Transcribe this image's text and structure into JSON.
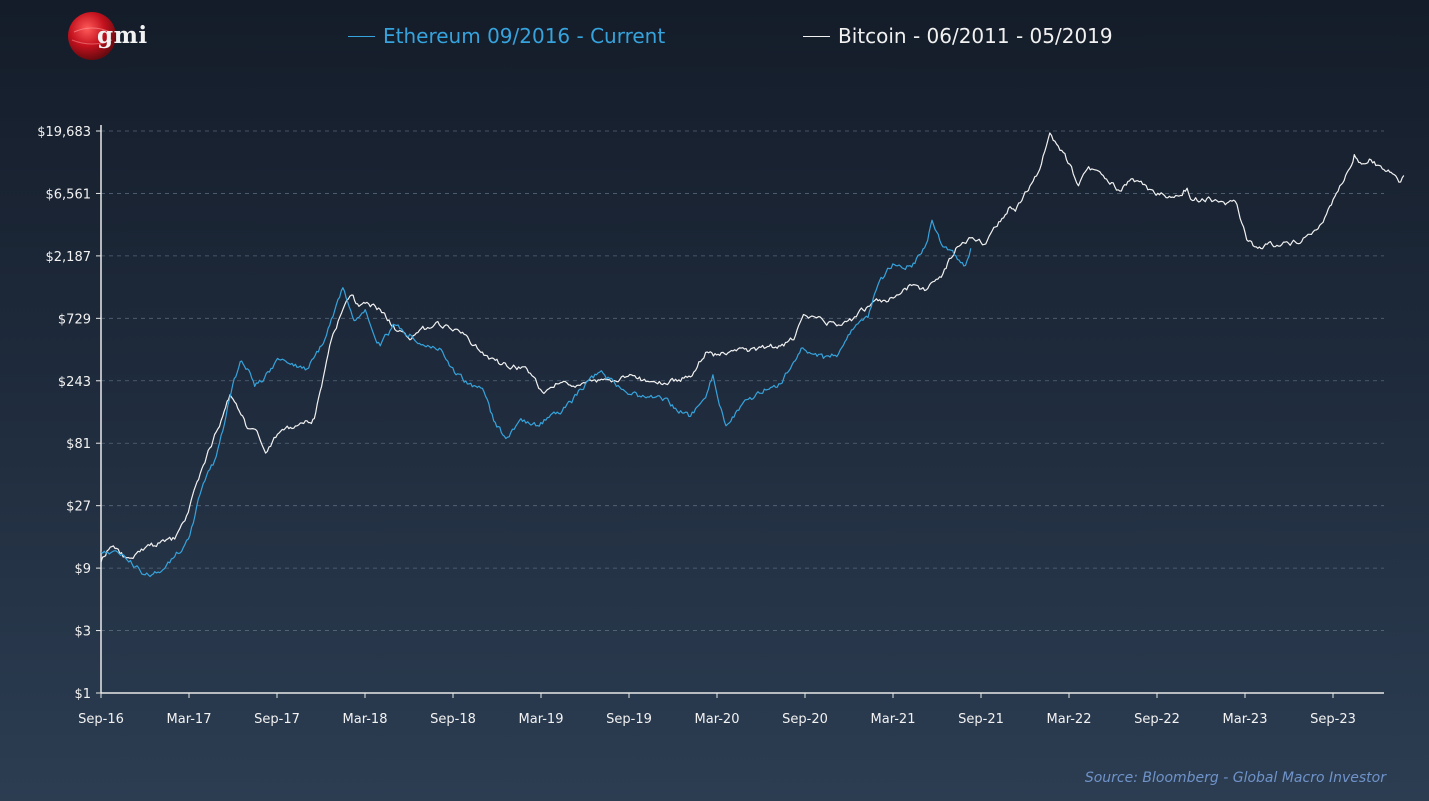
{
  "logo": {
    "text": "gmi",
    "icon": "red-globe-logo"
  },
  "legend": [
    {
      "label": "Ethereum 09/2016 - Current",
      "color": "#36a3dc"
    },
    {
      "label": "Bitcoin - 06/2011 - 05/2019",
      "color": "#f1f1f1"
    }
  ],
  "source": "Source: Bloomberg - Global Macro Investor",
  "chart_data": {
    "type": "line",
    "title": "",
    "xlabel": "",
    "ylabel": "",
    "y_scale": "log3",
    "y_ticks": [
      1,
      3,
      9,
      27,
      81,
      243,
      729,
      2187,
      6561,
      19683
    ],
    "y_tick_labels": [
      "$1",
      "$3",
      "$9",
      "$27",
      "$81",
      "$243",
      "$729",
      "$2,187",
      "$6,561",
      "$19,683"
    ],
    "x_tick_labels": [
      "Sep-16",
      "Mar-17",
      "Sep-17",
      "Mar-18",
      "Sep-18",
      "Mar-19",
      "Sep-19",
      "Mar-20",
      "Sep-20",
      "Mar-21",
      "Sep-21",
      "Mar-22",
      "Sep-22",
      "Mar-23",
      "Sep-23"
    ],
    "grid": "horizontal dashed",
    "legend_position": "top",
    "series": [
      {
        "name": "Ethereum 09/2016 - Current",
        "color": "#36a3dc",
        "points": [
          [
            "2016-09-01",
            12
          ],
          [
            "2016-10-15",
            11.5
          ],
          [
            "2016-12-01",
            8
          ],
          [
            "2016-12-31",
            8.3
          ],
          [
            "2017-01-31",
            11
          ],
          [
            "2017-02-28",
            15
          ],
          [
            "2017-03-31",
            40
          ],
          [
            "2017-04-20",
            55
          ],
          [
            "2017-05-10",
            100
          ],
          [
            "2017-05-31",
            230
          ],
          [
            "2017-06-15",
            340
          ],
          [
            "2017-06-30",
            300
          ],
          [
            "2017-07-15",
            220
          ],
          [
            "2017-08-01",
            240
          ],
          [
            "2017-08-31",
            360
          ],
          [
            "2017-09-30",
            330
          ],
          [
            "2017-10-31",
            300
          ],
          [
            "2017-11-30",
            450
          ],
          [
            "2017-12-20",
            720
          ],
          [
            "2018-01-13",
            1250
          ],
          [
            "2018-02-05",
            700
          ],
          [
            "2018-02-28",
            850
          ],
          [
            "2018-03-31",
            450
          ],
          [
            "2018-04-30",
            650
          ],
          [
            "2018-05-31",
            550
          ],
          [
            "2018-06-30",
            450
          ],
          [
            "2018-07-31",
            430
          ],
          [
            "2018-08-31",
            280
          ],
          [
            "2018-09-30",
            230
          ],
          [
            "2018-10-31",
            200
          ],
          [
            "2018-11-20",
            120
          ],
          [
            "2018-12-15",
            88
          ],
          [
            "2019-01-15",
            125
          ],
          [
            "2019-02-15",
            110
          ],
          [
            "2019-03-31",
            140
          ],
          [
            "2019-04-30",
            165
          ],
          [
            "2019-05-31",
            240
          ],
          [
            "2019-06-30",
            290
          ],
          [
            "2019-07-31",
            220
          ],
          [
            "2019-08-31",
            190
          ],
          [
            "2019-09-30",
            180
          ],
          [
            "2019-10-31",
            180
          ],
          [
            "2019-11-30",
            150
          ],
          [
            "2019-12-31",
            130
          ],
          [
            "2020-01-31",
            180
          ],
          [
            "2020-02-15",
            270
          ],
          [
            "2020-03-13",
            110
          ],
          [
            "2020-04-15",
            160
          ],
          [
            "2020-05-31",
            210
          ],
          [
            "2020-06-30",
            230
          ],
          [
            "2020-07-31",
            340
          ],
          [
            "2020-08-15",
            430
          ],
          [
            "2020-09-30",
            360
          ],
          [
            "2020-10-31",
            390
          ],
          [
            "2020-11-30",
            600
          ],
          [
            "2020-12-31",
            740
          ],
          [
            "2021-01-20",
            1300
          ],
          [
            "2021-02-20",
            1900
          ],
          [
            "2021-03-31",
            1800
          ],
          [
            "2021-04-30",
            2700
          ],
          [
            "2021-05-12",
            4100
          ],
          [
            "2021-05-31",
            2700
          ],
          [
            "2021-06-30",
            2200
          ],
          [
            "2021-07-20",
            1850
          ],
          [
            "2021-07-31",
            2500
          ]
        ]
      },
      {
        "name": "Bitcoin - 06/2011 - 05/2019",
        "color": "#f1f1f1",
        "points": [
          [
            "2016-09-01",
            10
          ],
          [
            "2016-09-20",
            13
          ],
          [
            "2016-10-20",
            11
          ],
          [
            "2016-11-20",
            12
          ],
          [
            "2016-12-31",
            14
          ],
          [
            "2017-01-31",
            15
          ],
          [
            "2017-02-28",
            24
          ],
          [
            "2017-03-15",
            38
          ],
          [
            "2017-03-31",
            55
          ],
          [
            "2017-04-20",
            85
          ],
          [
            "2017-05-10",
            130
          ],
          [
            "2017-05-25",
            190
          ],
          [
            "2017-06-10",
            150
          ],
          [
            "2017-06-30",
            105
          ],
          [
            "2017-07-20",
            100
          ],
          [
            "2017-08-10",
            70
          ],
          [
            "2017-08-31",
            95
          ],
          [
            "2017-09-30",
            105
          ],
          [
            "2017-10-31",
            120
          ],
          [
            "2017-11-15",
            125
          ],
          [
            "2017-11-30",
            220
          ],
          [
            "2017-12-20",
            500
          ],
          [
            "2018-01-10",
            800
          ],
          [
            "2018-01-31",
            1100
          ],
          [
            "2018-02-15",
            900
          ],
          [
            "2018-02-28",
            950
          ],
          [
            "2018-03-31",
            850
          ],
          [
            "2018-04-15",
            700
          ],
          [
            "2018-04-30",
            600
          ],
          [
            "2018-05-31",
            500
          ],
          [
            "2018-06-30",
            600
          ],
          [
            "2018-07-31",
            650
          ],
          [
            "2018-08-31",
            600
          ],
          [
            "2018-09-30",
            500
          ],
          [
            "2018-10-31",
            380
          ],
          [
            "2018-11-30",
            330
          ],
          [
            "2018-12-31",
            320
          ],
          [
            "2019-01-31",
            280
          ],
          [
            "2019-02-28",
            200
          ],
          [
            "2019-03-31",
            230
          ],
          [
            "2019-04-30",
            220
          ],
          [
            "2019-05-31",
            240
          ],
          [
            "2019-06-30",
            250
          ],
          [
            "2019-07-31",
            240
          ],
          [
            "2019-08-31",
            270
          ],
          [
            "2019-09-30",
            240
          ],
          [
            "2019-10-31",
            230
          ],
          [
            "2019-11-30",
            250
          ],
          [
            "2019-12-31",
            260
          ],
          [
            "2020-01-31",
            400
          ],
          [
            "2020-02-29",
            380
          ],
          [
            "2020-03-31",
            420
          ],
          [
            "2020-04-30",
            410
          ],
          [
            "2020-05-31",
            430
          ],
          [
            "2020-06-30",
            450
          ],
          [
            "2020-07-31",
            500
          ],
          [
            "2020-08-20",
            780
          ],
          [
            "2020-09-30",
            700
          ],
          [
            "2020-10-31",
            650
          ],
          [
            "2020-11-30",
            720
          ],
          [
            "2020-12-31",
            900
          ],
          [
            "2021-01-31",
            1000
          ],
          [
            "2021-02-28",
            1100
          ],
          [
            "2021-03-31",
            1300
          ],
          [
            "2021-04-30",
            1200
          ],
          [
            "2021-05-31",
            1500
          ],
          [
            "2021-06-30",
            2500
          ],
          [
            "2021-07-31",
            3000
          ],
          [
            "2021-08-31",
            2700
          ],
          [
            "2021-09-30",
            4000
          ],
          [
            "2021-10-20",
            5200
          ],
          [
            "2021-10-31",
            4800
          ],
          [
            "2021-11-30",
            7500
          ],
          [
            "2021-12-20",
            10000
          ],
          [
            "2022-01-10",
            19000
          ],
          [
            "2022-01-31",
            14000
          ],
          [
            "2022-02-20",
            11000
          ],
          [
            "2022-03-10",
            7500
          ],
          [
            "2022-03-31",
            10500
          ],
          [
            "2022-04-30",
            9000
          ],
          [
            "2022-05-31",
            7000
          ],
          [
            "2022-06-30",
            8500
          ],
          [
            "2022-07-31",
            7000
          ],
          [
            "2022-08-31",
            6500
          ],
          [
            "2022-09-30",
            6300
          ],
          [
            "2022-10-20",
            7200
          ],
          [
            "2022-10-31",
            5800
          ],
          [
            "2022-11-30",
            6000
          ],
          [
            "2022-12-31",
            5700
          ],
          [
            "2023-01-31",
            5400
          ],
          [
            "2023-02-20",
            2900
          ],
          [
            "2023-03-15",
            2500
          ],
          [
            "2023-03-31",
            2700
          ],
          [
            "2023-04-30",
            2600
          ],
          [
            "2023-05-31",
            2800
          ],
          [
            "2023-06-30",
            3200
          ],
          [
            "2023-07-31",
            4300
          ],
          [
            "2023-08-31",
            7500
          ],
          [
            "2023-09-15",
            9500
          ],
          [
            "2023-09-30",
            13000
          ],
          [
            "2023-10-15",
            11000
          ],
          [
            "2023-10-31",
            12000
          ],
          [
            "2023-11-30",
            10000
          ],
          [
            "2023-12-15",
            9500
          ],
          [
            "2023-12-31",
            8000
          ],
          [
            "2024-01-10",
            9000
          ]
        ]
      }
    ]
  }
}
